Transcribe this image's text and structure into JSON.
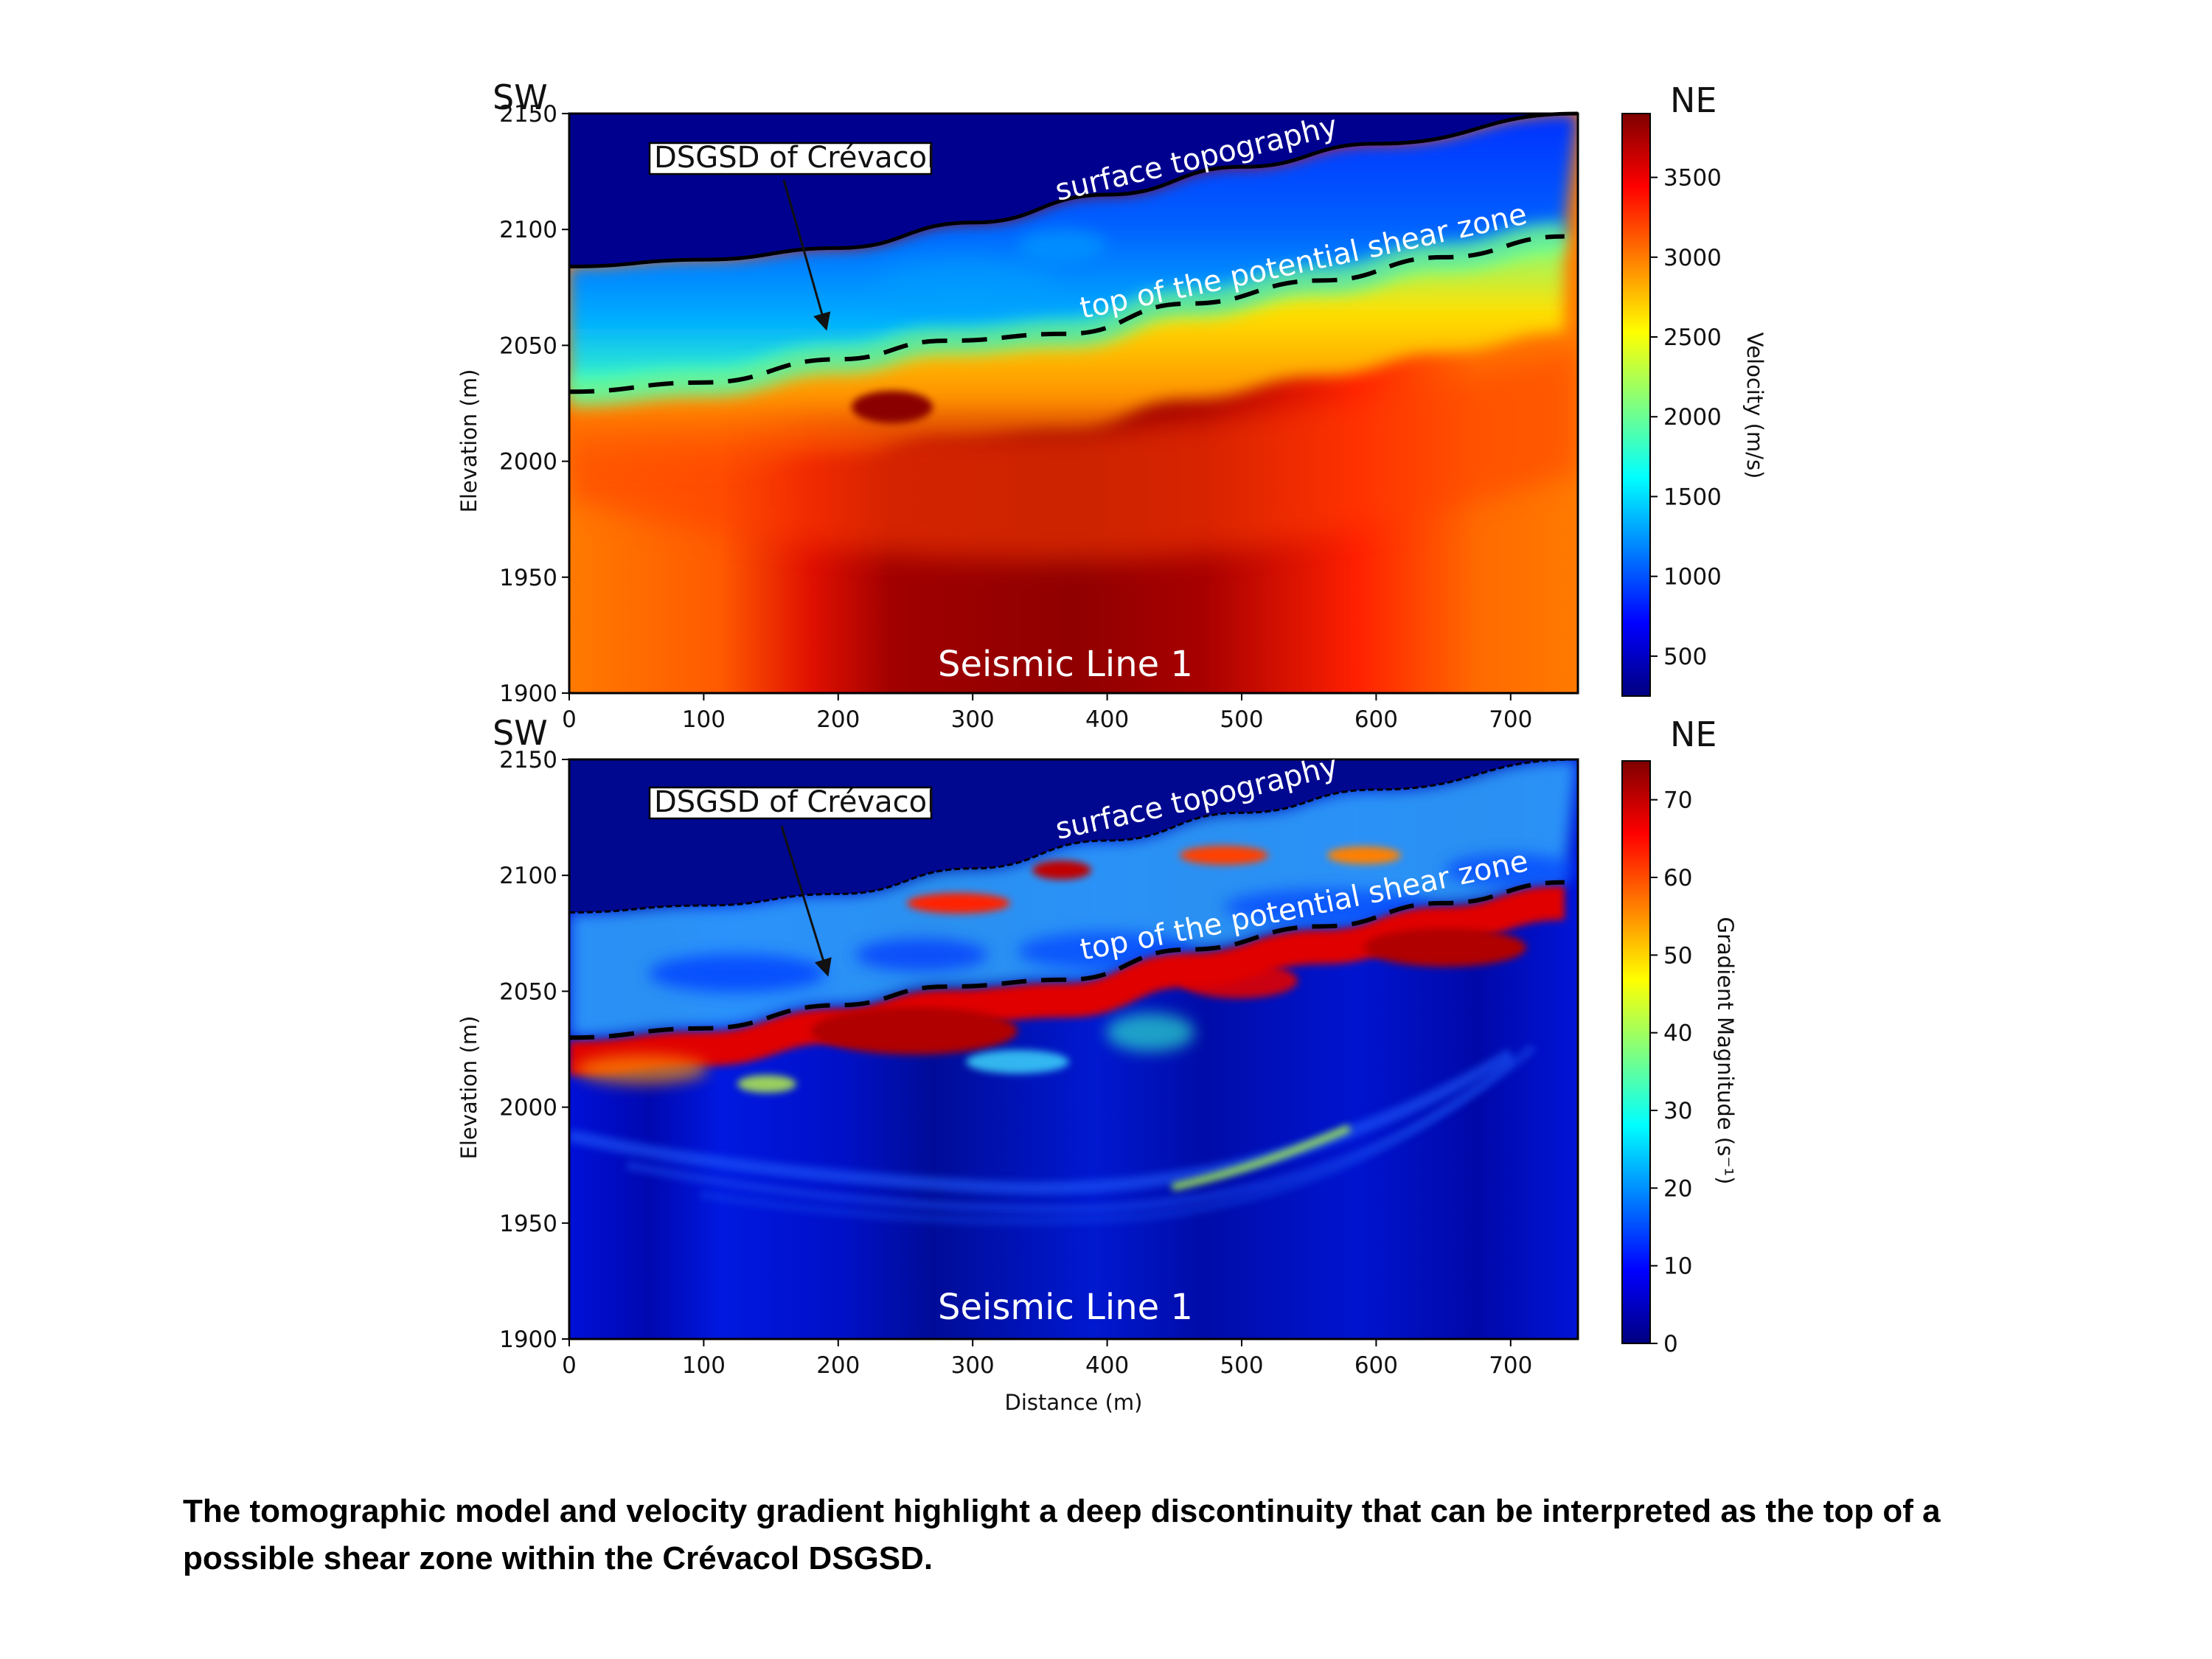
{
  "caption": "The tomographic model and velocity gradient highlight a deep discontinuity that can be interpreted as the top of a possible shear zone within the Crévacol DSGSD.",
  "colors": {
    "jet": [
      "#00007f",
      "#0000ff",
      "#007fff",
      "#00ffff",
      "#7fff7f",
      "#ffff00",
      "#ff7f00",
      "#ff0000",
      "#7f0000"
    ]
  },
  "chart_data": [
    {
      "type": "heatmap",
      "panel": "velocity",
      "left_label": "SW",
      "right_label": "NE",
      "xlim": [
        0,
        750
      ],
      "ylim": [
        1900,
        2150
      ],
      "x_ticks": [
        "0",
        "100",
        "200",
        "300",
        "400",
        "500",
        "600",
        "700"
      ],
      "y_ticks": [
        "1900",
        "1950",
        "2000",
        "2050",
        "2100",
        "2150"
      ],
      "xlabel": "",
      "ylabel": "Elevation (m)",
      "colorbar": {
        "label": "Velocity (m/s)",
        "range": [
          250,
          3900
        ],
        "ticks": [
          "500",
          "1000",
          "1500",
          "2000",
          "2500",
          "3000",
          "3500"
        ]
      },
      "in_plot_label": "Seismic Line 1",
      "box_annotation": {
        "text": "DSGSD of Crévacol",
        "arrow_to": [
          190,
          2062
        ]
      },
      "surface_topography": {
        "label": "surface topography",
        "x": [
          0,
          100,
          200,
          300,
          400,
          500,
          600,
          750
        ],
        "y": [
          2084,
          2087,
          2092,
          2103,
          2115,
          2127,
          2137,
          2150
        ]
      },
      "shear_zone_top": {
        "label": "top of the potential shear zone",
        "x": [
          0,
          100,
          200,
          280,
          370,
          460,
          560,
          650,
          740
        ],
        "y": [
          2030,
          2034,
          2044,
          2052,
          2055,
          2068,
          2078,
          2088,
          2097
        ]
      }
    },
    {
      "type": "heatmap",
      "panel": "gradient",
      "left_label": "SW",
      "right_label": "NE",
      "xlim": [
        0,
        750
      ],
      "ylim": [
        1900,
        2150
      ],
      "x_ticks": [
        "0",
        "100",
        "200",
        "300",
        "400",
        "500",
        "600",
        "700"
      ],
      "y_ticks": [
        "1900",
        "1950",
        "2000",
        "2050",
        "2100",
        "2150"
      ],
      "xlabel": "Distance (m)",
      "ylabel": "Elevation (m)",
      "colorbar": {
        "label": "Gradient Magnitude (s⁻¹)",
        "range": [
          0,
          75
        ],
        "ticks": [
          "0",
          "10",
          "20",
          "30",
          "40",
          "50",
          "60",
          "70"
        ]
      },
      "in_plot_label": "Seismic Line 1",
      "box_annotation": {
        "text": "DSGSD of Crévacol",
        "arrow_to": [
          190,
          2062
        ]
      },
      "surface_topography": {
        "label": "surface topography",
        "x": [
          0,
          100,
          200,
          300,
          400,
          500,
          600,
          750
        ],
        "y": [
          2084,
          2087,
          2092,
          2103,
          2115,
          2127,
          2137,
          2150
        ]
      },
      "shear_zone_top": {
        "label": "top of the potential shear zone",
        "x": [
          0,
          100,
          200,
          280,
          370,
          460,
          560,
          650,
          740
        ],
        "y": [
          2030,
          2034,
          2044,
          2052,
          2055,
          2068,
          2078,
          2088,
          2097
        ]
      }
    }
  ]
}
